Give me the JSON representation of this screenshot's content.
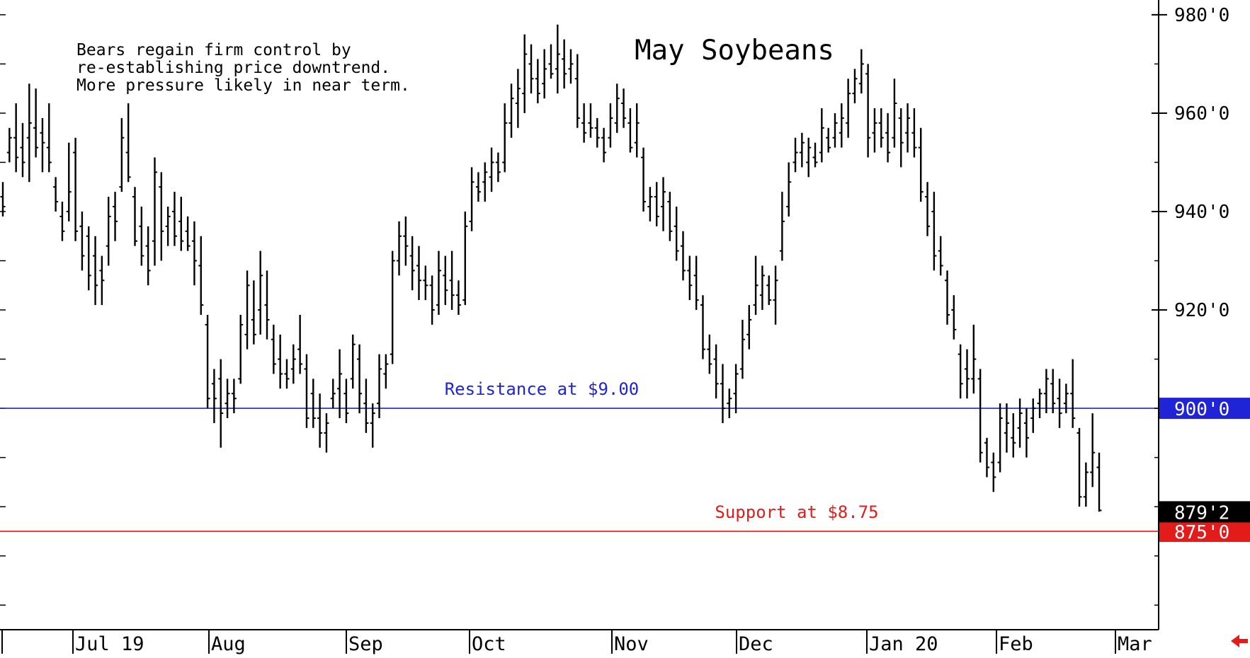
{
  "chart_data": {
    "type": "ohlc",
    "title": "May Soybeans",
    "annotation_lines": [
      "Bears regain firm control by",
      "re-establishing price downtrend.",
      "More pressure likely in near term."
    ],
    "ylim": [
      855,
      983
    ],
    "y_ticks": [
      {
        "value": 980,
        "label": "980'0"
      },
      {
        "value": 960,
        "label": "960'0"
      },
      {
        "value": 940,
        "label": "940'0"
      },
      {
        "value": 920,
        "label": "920'0"
      }
    ],
    "x_labels": [
      "Jul 19",
      "Aug",
      "Sep",
      "Oct",
      "Nov",
      "Dec",
      "Jan 20",
      "Feb",
      "Mar"
    ],
    "reference_lines": [
      {
        "value": 900.0,
        "label": "Resistance at $9.00",
        "axis_label": "900'0",
        "color": "#1f24d6"
      },
      {
        "value": 875.0,
        "label": "Support at $8.75",
        "axis_label": "875'0",
        "color": "#e31b1b"
      }
    ],
    "last_price": {
      "value": 879.25,
      "label": "879'2"
    },
    "bars": [
      {
        "high": 946,
        "low": 939,
        "open": 943,
        "close": 941
      },
      {
        "high": 957,
        "low": 950,
        "open": 952,
        "close": 955
      },
      {
        "high": 962,
        "low": 948,
        "open": 955,
        "close": 951
      },
      {
        "high": 958,
        "low": 947,
        "open": 953,
        "close": 950
      },
      {
        "high": 966,
        "low": 946,
        "open": 955,
        "close": 958
      },
      {
        "high": 965,
        "low": 951,
        "open": 957,
        "close": 953
      },
      {
        "high": 959,
        "low": 948,
        "open": 956,
        "close": 954
      },
      {
        "high": 962,
        "low": 948,
        "open": 953,
        "close": 950
      },
      {
        "high": 947,
        "low": 940,
        "open": 945,
        "close": 942
      },
      {
        "high": 942,
        "low": 934,
        "open": 939,
        "close": 936
      },
      {
        "high": 954,
        "low": 938,
        "open": 940,
        "close": 944
      },
      {
        "high": 955,
        "low": 934,
        "open": 952,
        "close": 936
      },
      {
        "high": 940,
        "low": 928,
        "open": 937,
        "close": 931
      },
      {
        "high": 937,
        "low": 924,
        "open": 935,
        "close": 927
      },
      {
        "high": 935,
        "low": 921,
        "open": 931,
        "close": 925
      },
      {
        "high": 931,
        "low": 921,
        "open": 928,
        "close": 926
      },
      {
        "high": 943,
        "low": 929,
        "open": 933,
        "close": 939
      },
      {
        "high": 944,
        "low": 934,
        "open": 941,
        "close": 938
      },
      {
        "high": 959,
        "low": 944,
        "open": 945,
        "close": 955
      },
      {
        "high": 962,
        "low": 946,
        "open": 952,
        "close": 947
      },
      {
        "high": 945,
        "low": 933,
        "open": 943,
        "close": 934
      },
      {
        "high": 941,
        "low": 929,
        "open": 937,
        "close": 931
      },
      {
        "high": 937,
        "low": 925,
        "open": 933,
        "close": 928
      },
      {
        "high": 951,
        "low": 929,
        "open": 934,
        "close": 948
      },
      {
        "high": 948,
        "low": 930,
        "open": 945,
        "close": 936
      },
      {
        "high": 941,
        "low": 933,
        "open": 937,
        "close": 939
      },
      {
        "high": 944,
        "low": 933,
        "open": 940,
        "close": 935
      },
      {
        "high": 943,
        "low": 932,
        "open": 938,
        "close": 934
      },
      {
        "high": 939,
        "low": 932,
        "open": 936,
        "close": 933
      },
      {
        "high": 938,
        "low": 925,
        "open": 934,
        "close": 930
      },
      {
        "high": 935,
        "low": 919,
        "open": 929,
        "close": 921
      },
      {
        "high": 919,
        "low": 900,
        "open": 917,
        "close": 902
      },
      {
        "high": 908,
        "low": 897,
        "open": 905,
        "close": 902
      },
      {
        "high": 910,
        "low": 892,
        "open": 906,
        "close": 899
      },
      {
        "high": 906,
        "low": 898,
        "open": 901,
        "close": 903
      },
      {
        "high": 906,
        "low": 899,
        "open": 903,
        "close": 902
      },
      {
        "high": 919,
        "low": 905,
        "open": 906,
        "close": 917
      },
      {
        "high": 928,
        "low": 912,
        "open": 915,
        "close": 925
      },
      {
        "high": 926,
        "low": 913,
        "open": 918,
        "close": 915
      },
      {
        "high": 932,
        "low": 915,
        "open": 920,
        "close": 927
      },
      {
        "high": 928,
        "low": 914,
        "open": 921,
        "close": 918
      },
      {
        "high": 917,
        "low": 907,
        "open": 914,
        "close": 909
      },
      {
        "high": 915,
        "low": 904,
        "open": 910,
        "close": 907
      },
      {
        "high": 910,
        "low": 904,
        "open": 907,
        "close": 906
      },
      {
        "high": 913,
        "low": 905,
        "open": 908,
        "close": 910
      },
      {
        "high": 919,
        "low": 907,
        "open": 912,
        "close": 909
      },
      {
        "high": 911,
        "low": 896,
        "open": 908,
        "close": 898
      },
      {
        "high": 906,
        "low": 896,
        "open": 903,
        "close": 898
      },
      {
        "high": 903,
        "low": 892,
        "open": 898,
        "close": 895
      },
      {
        "high": 899,
        "low": 891,
        "open": 895,
        "close": 897
      },
      {
        "high": 906,
        "low": 900,
        "open": 902,
        "close": 903
      },
      {
        "high": 912,
        "low": 898,
        "open": 904,
        "close": 907
      },
      {
        "high": 906,
        "low": 897,
        "open": 903,
        "close": 899
      },
      {
        "high": 915,
        "low": 904,
        "open": 906,
        "close": 913
      },
      {
        "high": 913,
        "low": 899,
        "open": 910,
        "close": 903
      },
      {
        "high": 906,
        "low": 895,
        "open": 901,
        "close": 897
      },
      {
        "high": 901,
        "low": 892,
        "open": 897,
        "close": 899
      },
      {
        "high": 911,
        "low": 898,
        "open": 901,
        "close": 908
      },
      {
        "high": 911,
        "low": 904,
        "open": 907,
        "close": 909
      },
      {
        "high": 932,
        "low": 909,
        "open": 911,
        "close": 930
      },
      {
        "high": 938,
        "low": 927,
        "open": 930,
        "close": 935
      },
      {
        "high": 939,
        "low": 929,
        "open": 935,
        "close": 933
      },
      {
        "high": 935,
        "low": 924,
        "open": 931,
        "close": 928
      },
      {
        "high": 933,
        "low": 922,
        "open": 929,
        "close": 926
      },
      {
        "high": 929,
        "low": 922,
        "open": 926,
        "close": 925
      },
      {
        "high": 927,
        "low": 917,
        "open": 925,
        "close": 920
      },
      {
        "high": 932,
        "low": 919,
        "open": 921,
        "close": 928
      },
      {
        "high": 931,
        "low": 921,
        "open": 927,
        "close": 924
      },
      {
        "high": 932,
        "low": 920,
        "open": 926,
        "close": 923
      },
      {
        "high": 926,
        "low": 919,
        "open": 923,
        "close": 921
      },
      {
        "high": 940,
        "low": 921,
        "open": 922,
        "close": 937
      },
      {
        "high": 949,
        "low": 936,
        "open": 938,
        "close": 946
      },
      {
        "high": 948,
        "low": 942,
        "open": 945,
        "close": 944
      },
      {
        "high": 950,
        "low": 942,
        "open": 946,
        "close": 948
      },
      {
        "high": 953,
        "low": 944,
        "open": 947,
        "close": 950
      },
      {
        "high": 952,
        "low": 946,
        "open": 950,
        "close": 948
      },
      {
        "high": 962,
        "low": 948,
        "open": 950,
        "close": 958
      },
      {
        "high": 966,
        "low": 955,
        "open": 958,
        "close": 963
      },
      {
        "high": 969,
        "low": 957,
        "open": 962,
        "close": 965
      },
      {
        "high": 976,
        "low": 960,
        "open": 964,
        "close": 972
      },
      {
        "high": 974,
        "low": 964,
        "open": 970,
        "close": 967
      },
      {
        "high": 971,
        "low": 962,
        "open": 967,
        "close": 964
      },
      {
        "high": 973,
        "low": 963,
        "open": 966,
        "close": 969
      },
      {
        "high": 974,
        "low": 967,
        "open": 970,
        "close": 968
      },
      {
        "high": 978,
        "low": 964,
        "open": 969,
        "close": 972
      },
      {
        "high": 975,
        "low": 965,
        "open": 971,
        "close": 968
      },
      {
        "high": 973,
        "low": 966,
        "open": 969,
        "close": 970
      },
      {
        "high": 972,
        "low": 957,
        "open": 967,
        "close": 959
      },
      {
        "high": 962,
        "low": 954,
        "open": 958,
        "close": 956
      },
      {
        "high": 962,
        "low": 955,
        "open": 958,
        "close": 957
      },
      {
        "high": 959,
        "low": 953,
        "open": 957,
        "close": 955
      },
      {
        "high": 957,
        "low": 950,
        "open": 955,
        "close": 952
      },
      {
        "high": 962,
        "low": 953,
        "open": 955,
        "close": 959
      },
      {
        "high": 966,
        "low": 956,
        "open": 958,
        "close": 963
      },
      {
        "high": 965,
        "low": 957,
        "open": 962,
        "close": 959
      },
      {
        "high": 961,
        "low": 952,
        "open": 958,
        "close": 953
      },
      {
        "high": 962,
        "low": 951,
        "open": 954,
        "close": 958
      },
      {
        "high": 953,
        "low": 940,
        "open": 951,
        "close": 942
      },
      {
        "high": 945,
        "low": 938,
        "open": 941,
        "close": 943
      },
      {
        "high": 946,
        "low": 937,
        "open": 943,
        "close": 939
      },
      {
        "high": 947,
        "low": 936,
        "open": 941,
        "close": 944
      },
      {
        "high": 944,
        "low": 934,
        "open": 942,
        "close": 936
      },
      {
        "high": 941,
        "low": 930,
        "open": 937,
        "close": 932
      },
      {
        "high": 936,
        "low": 926,
        "open": 933,
        "close": 928
      },
      {
        "high": 931,
        "low": 922,
        "open": 928,
        "close": 925
      },
      {
        "high": 931,
        "low": 920,
        "open": 927,
        "close": 922
      },
      {
        "high": 923,
        "low": 910,
        "open": 921,
        "close": 912
      },
      {
        "high": 915,
        "low": 907,
        "open": 912,
        "close": 909
      },
      {
        "high": 913,
        "low": 902,
        "open": 910,
        "close": 905
      },
      {
        "high": 909,
        "low": 897,
        "open": 905,
        "close": 900
      },
      {
        "high": 904,
        "low": 898,
        "open": 901,
        "close": 902
      },
      {
        "high": 909,
        "low": 899,
        "open": 903,
        "close": 907
      },
      {
        "high": 918,
        "low": 906,
        "open": 908,
        "close": 914
      },
      {
        "high": 921,
        "low": 912,
        "open": 915,
        "close": 918
      },
      {
        "high": 931,
        "low": 919,
        "open": 921,
        "close": 925
      },
      {
        "high": 929,
        "low": 920,
        "open": 923,
        "close": 927
      },
      {
        "high": 927,
        "low": 921,
        "open": 925,
        "close": 922
      },
      {
        "high": 929,
        "low": 917,
        "open": 922,
        "close": 926
      },
      {
        "high": 944,
        "low": 930,
        "open": 932,
        "close": 938
      },
      {
        "high": 950,
        "low": 939,
        "open": 941,
        "close": 946
      },
      {
        "high": 955,
        "low": 948,
        "open": 950,
        "close": 952
      },
      {
        "high": 956,
        "low": 949,
        "open": 952,
        "close": 954
      },
      {
        "high": 955,
        "low": 947,
        "open": 950,
        "close": 953
      },
      {
        "high": 954,
        "low": 949,
        "open": 951,
        "close": 950
      },
      {
        "high": 961,
        "low": 950,
        "open": 952,
        "close": 957
      },
      {
        "high": 957,
        "low": 952,
        "open": 955,
        "close": 953
      },
      {
        "high": 960,
        "low": 953,
        "open": 955,
        "close": 958
      },
      {
        "high": 962,
        "low": 953,
        "open": 956,
        "close": 959
      },
      {
        "high": 967,
        "low": 955,
        "open": 958,
        "close": 964
      },
      {
        "high": 969,
        "low": 962,
        "open": 964,
        "close": 967
      },
      {
        "high": 973,
        "low": 964,
        "open": 966,
        "close": 970
      },
      {
        "high": 970,
        "low": 951,
        "open": 968,
        "close": 955
      },
      {
        "high": 961,
        "low": 952,
        "open": 956,
        "close": 958
      },
      {
        "high": 961,
        "low": 953,
        "open": 958,
        "close": 955
      },
      {
        "high": 960,
        "low": 950,
        "open": 956,
        "close": 952
      },
      {
        "high": 967,
        "low": 953,
        "open": 955,
        "close": 962
      },
      {
        "high": 961,
        "low": 949,
        "open": 959,
        "close": 954
      },
      {
        "high": 962,
        "low": 952,
        "open": 956,
        "close": 959
      },
      {
        "high": 961,
        "low": 951,
        "open": 956,
        "close": 953
      },
      {
        "high": 957,
        "low": 942,
        "open": 953,
        "close": 944
      },
      {
        "high": 946,
        "low": 935,
        "open": 943,
        "close": 937
      },
      {
        "high": 944,
        "low": 928,
        "open": 940,
        "close": 931
      },
      {
        "high": 935,
        "low": 927,
        "open": 932,
        "close": 929
      },
      {
        "high": 928,
        "low": 917,
        "open": 926,
        "close": 919
      },
      {
        "high": 923,
        "low": 914,
        "open": 920,
        "close": 916
      },
      {
        "high": 913,
        "low": 902,
        "open": 911,
        "close": 905
      },
      {
        "high": 912,
        "low": 902,
        "open": 908,
        "close": 906
      },
      {
        "high": 917,
        "low": 903,
        "open": 906,
        "close": 910
      },
      {
        "high": 908,
        "low": 889,
        "open": 906,
        "close": 891
      },
      {
        "high": 894,
        "low": 886,
        "open": 893,
        "close": 888
      },
      {
        "high": 891,
        "low": 883,
        "open": 889,
        "close": 886
      },
      {
        "high": 901,
        "low": 887,
        "open": 889,
        "close": 898
      },
      {
        "high": 901,
        "low": 891,
        "open": 895,
        "close": 897
      },
      {
        "high": 899,
        "low": 890,
        "open": 894,
        "close": 893
      },
      {
        "high": 902,
        "low": 892,
        "open": 896,
        "close": 899
      },
      {
        "high": 900,
        "low": 890,
        "open": 897,
        "close": 894
      },
      {
        "high": 902,
        "low": 895,
        "open": 898,
        "close": 900
      },
      {
        "high": 904,
        "low": 898,
        "open": 901,
        "close": 903
      },
      {
        "high": 908,
        "low": 899,
        "open": 903,
        "close": 906
      },
      {
        "high": 908,
        "low": 899,
        "open": 905,
        "close": 901
      },
      {
        "high": 906,
        "low": 896,
        "open": 902,
        "close": 899
      },
      {
        "high": 905,
        "low": 899,
        "open": 901,
        "close": 903
      },
      {
        "high": 910,
        "low": 896,
        "open": 903,
        "close": 898
      },
      {
        "high": 896,
        "low": 880,
        "open": 895,
        "close": 882
      },
      {
        "high": 889,
        "low": 880,
        "open": 882,
        "close": 887
      },
      {
        "high": 899,
        "low": 884,
        "open": 887,
        "close": 891
      },
      {
        "high": 891,
        "low": 879,
        "open": 888,
        "close": 879.25
      }
    ]
  }
}
